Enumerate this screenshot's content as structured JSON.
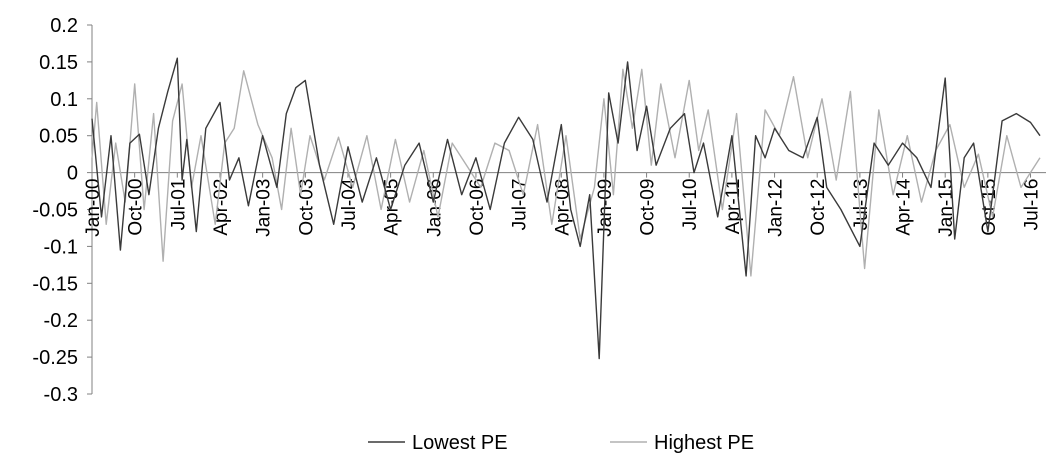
{
  "chart_data": {
    "type": "line",
    "title": "",
    "xlabel": "",
    "ylabel": "",
    "ylim": [
      -0.3,
      0.2
    ],
    "y_ticks": [
      "0.2",
      "0.15",
      "0.1",
      "0.05",
      "0",
      "-0.05",
      "-0.1",
      "-0.15",
      "-0.2",
      "-0.25",
      "-0.3"
    ],
    "x_tick_labels": [
      "Jan-00",
      "Oct-00",
      "Jul-01",
      "Apr-02",
      "Jan-03",
      "Oct-03",
      "Jul-04",
      "Apr-05",
      "Jan-06",
      "Oct-06",
      "Jul-07",
      "Apr-08",
      "Jan-09",
      "Oct-09",
      "Jul-10",
      "Apr-11",
      "Jan-12",
      "Oct-12",
      "Jul-13",
      "Apr-14",
      "Jan-15",
      "Oct-15",
      "Jul-16"
    ],
    "x_range": [
      "Jan-00",
      "Sep-16"
    ],
    "grid": false,
    "legend_position": "bottom",
    "series": [
      {
        "name": "Lowest PE",
        "color": "#3a3a3a",
        "x": [
          "Jan-00",
          "Mar-00",
          "May-00",
          "Jul-00",
          "Sep-00",
          "Nov-00",
          "Jan-01",
          "Mar-01",
          "May-01",
          "Jul-01",
          "Aug-01",
          "Sep-01",
          "Nov-01",
          "Jan-02",
          "Apr-02",
          "Jun-02",
          "Aug-02",
          "Oct-02",
          "Jan-03",
          "Apr-03",
          "Jun-03",
          "Aug-03",
          "Oct-03",
          "Jan-04",
          "Apr-04",
          "Jul-04",
          "Oct-04",
          "Jan-05",
          "Apr-05",
          "Jul-05",
          "Oct-05",
          "Jan-06",
          "Apr-06",
          "Jul-06",
          "Oct-06",
          "Jan-07",
          "Apr-07",
          "Jul-07",
          "Oct-07",
          "Jan-08",
          "Apr-08",
          "Jun-08",
          "Aug-08",
          "Oct-08",
          "Dec-08",
          "Feb-09",
          "Apr-09",
          "Jun-09",
          "Aug-09",
          "Oct-09",
          "Dec-09",
          "Mar-10",
          "Jun-10",
          "Aug-10",
          "Oct-10",
          "Jan-11",
          "Apr-11",
          "Jul-11",
          "Sep-11",
          "Nov-11",
          "Jan-12",
          "Apr-12",
          "Jul-12",
          "Oct-12",
          "Dec-12",
          "Mar-13",
          "Jul-13",
          "Oct-13",
          "Jan-14",
          "Apr-14",
          "Jul-14",
          "Oct-14",
          "Jan-15",
          "Mar-15",
          "May-15",
          "Jul-15",
          "Oct-15",
          "Jan-16",
          "Apr-16",
          "Jul-16",
          "Sep-16"
        ],
        "values": [
          0.073,
          -0.06,
          0.05,
          -0.105,
          0.04,
          0.052,
          -0.03,
          0.06,
          0.11,
          0.155,
          -0.01,
          0.045,
          -0.08,
          0.06,
          0.095,
          -0.01,
          0.02,
          -0.045,
          0.05,
          -0.02,
          0.08,
          0.115,
          0.125,
          0.01,
          -0.07,
          0.035,
          -0.04,
          0.02,
          -0.05,
          0.01,
          0.04,
          -0.04,
          0.045,
          -0.03,
          0.02,
          -0.05,
          0.04,
          0.075,
          0.045,
          -0.04,
          0.065,
          -0.05,
          -0.1,
          -0.03,
          -0.252,
          0.108,
          0.04,
          0.15,
          0.03,
          0.09,
          0.01,
          0.06,
          0.08,
          0.0,
          0.04,
          -0.06,
          0.05,
          -0.14,
          0.05,
          0.02,
          0.06,
          0.03,
          0.02,
          0.075,
          -0.02,
          -0.05,
          -0.1,
          0.04,
          0.01,
          0.04,
          0.02,
          -0.02,
          0.128,
          -0.09,
          0.02,
          0.04,
          -0.08,
          0.07,
          0.08,
          0.068,
          0.05
        ]
      },
      {
        "name": "Highest PE",
        "color": "#b0b0b0",
        "x": [
          "Jan-00",
          "Feb-00",
          "Apr-00",
          "Jun-00",
          "Aug-00",
          "Oct-00",
          "Dec-00",
          "Feb-01",
          "Apr-01",
          "Jun-01",
          "Aug-01",
          "Oct-01",
          "Dec-01",
          "Mar-02",
          "May-02",
          "Jul-02",
          "Sep-02",
          "Dec-02",
          "Mar-03",
          "May-03",
          "Jul-03",
          "Sep-03",
          "Nov-03",
          "Feb-04",
          "May-04",
          "Aug-04",
          "Nov-04",
          "Feb-05",
          "May-05",
          "Aug-05",
          "Nov-05",
          "Feb-06",
          "May-06",
          "Aug-06",
          "Nov-06",
          "Feb-07",
          "May-07",
          "Aug-07",
          "Nov-07",
          "Feb-08",
          "May-08",
          "Aug-08",
          "Nov-08",
          "Jan-09",
          "Mar-09",
          "May-09",
          "Jul-09",
          "Sep-09",
          "Nov-09",
          "Jan-10",
          "Apr-10",
          "Jul-10",
          "Sep-10",
          "Nov-10",
          "Feb-11",
          "May-11",
          "Aug-11",
          "Nov-11",
          "Feb-12",
          "May-12",
          "Aug-12",
          "Nov-12",
          "Feb-13",
          "May-13",
          "Aug-13",
          "Nov-13",
          "Feb-14",
          "May-14",
          "Aug-14",
          "Nov-14",
          "Feb-15",
          "May-15",
          "Aug-15",
          "Nov-15",
          "Feb-16",
          "May-16",
          "Sep-16"
        ],
        "values": [
          0.02,
          0.095,
          -0.07,
          0.04,
          -0.04,
          0.12,
          -0.05,
          0.08,
          -0.12,
          0.07,
          0.12,
          -0.02,
          0.05,
          -0.07,
          0.04,
          0.06,
          0.138,
          0.065,
          0.02,
          -0.05,
          0.06,
          -0.03,
          0.05,
          -0.01,
          0.048,
          -0.02,
          0.05,
          -0.05,
          0.045,
          -0.04,
          0.03,
          -0.06,
          0.04,
          0.01,
          -0.02,
          0.04,
          0.03,
          -0.03,
          0.065,
          -0.07,
          0.05,
          -0.09,
          -0.02,
          0.1,
          -0.03,
          0.14,
          0.06,
          0.14,
          0.01,
          0.12,
          0.02,
          0.125,
          0.03,
          0.085,
          -0.05,
          0.08,
          -0.14,
          0.085,
          0.05,
          0.13,
          0.02,
          0.1,
          -0.01,
          0.11,
          -0.13,
          0.085,
          -0.03,
          0.05,
          -0.04,
          0.03,
          0.065,
          -0.02,
          0.025,
          -0.06,
          0.05,
          -0.02,
          0.02
        ]
      }
    ]
  }
}
